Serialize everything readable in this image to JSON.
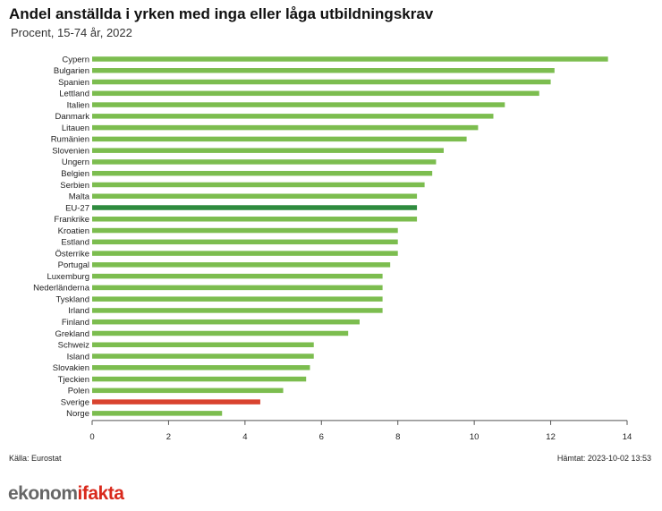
{
  "header": {
    "title": "Andel anställda i yrken med inga eller låga utbildningskrav",
    "subtitle": "Procent, 15-74 år, 2022"
  },
  "footer": {
    "source": "Källa: Eurostat",
    "fetched": "Hämtat: 2023-10-02 13:53"
  },
  "logo": {
    "part1": "ekonom",
    "part2": "i",
    "part3": "fakta",
    "color_dark": "#666666",
    "color_red": "#d9291c"
  },
  "colors": {
    "default": "#7cbd4f",
    "eu": "#2e8b3e",
    "sweden": "#d9432f"
  },
  "chart_data": {
    "type": "bar",
    "orientation": "horizontal",
    "categories": [
      "Cypern",
      "Bulgarien",
      "Spanien",
      "Lettland",
      "Italien",
      "Danmark",
      "Litauen",
      "Rumänien",
      "Slovenien",
      "Ungern",
      "Belgien",
      "Serbien",
      "Malta",
      "EU-27",
      "Frankrike",
      "Kroatien",
      "Estland",
      "Österrike",
      "Portugal",
      "Luxemburg",
      "Nederländerna",
      "Tyskland",
      "Irland",
      "Finland",
      "Grekland",
      "Schweiz",
      "Island",
      "Slovakien",
      "Tjeckien",
      "Polen",
      "Sverige",
      "Norge"
    ],
    "values": [
      13.5,
      12.1,
      12.0,
      11.7,
      10.8,
      10.5,
      10.1,
      9.8,
      9.2,
      9.0,
      8.9,
      8.7,
      8.5,
      8.5,
      8.5,
      8.0,
      8.0,
      8.0,
      7.8,
      7.6,
      7.6,
      7.6,
      7.6,
      7.0,
      6.7,
      5.8,
      5.8,
      5.7,
      5.6,
      5.0,
      4.4,
      3.4
    ],
    "highlight": {
      "EU-27": "eu",
      "Sverige": "sweden"
    },
    "xlim": [
      0,
      14
    ],
    "xticks": [
      "0",
      "2",
      "4",
      "6",
      "8",
      "10",
      "12",
      "14"
    ],
    "grid": false,
    "legend": "none"
  }
}
